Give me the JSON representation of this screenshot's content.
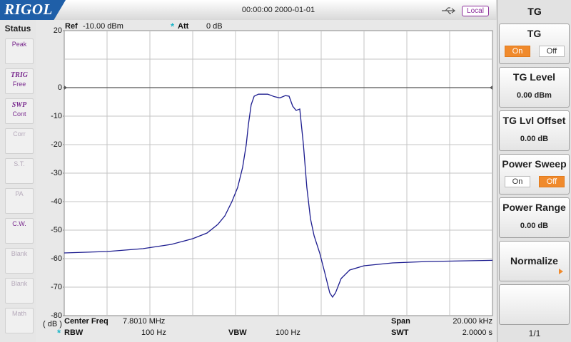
{
  "header": {
    "logo": "RIGOL",
    "datetime": "00:00:00 2000-01-01",
    "mode": "Local"
  },
  "sidebar": {
    "title": "Status",
    "items": [
      {
        "label": "Peak",
        "enabled": true
      },
      {
        "title": "TRIG",
        "label": "Free",
        "enabled": true
      },
      {
        "title": "SWP",
        "label": "Cont",
        "enabled": true
      },
      {
        "label": "Corr",
        "enabled": false
      },
      {
        "label": "S.T.",
        "enabled": false
      },
      {
        "label": "PA",
        "enabled": false
      },
      {
        "label": "C.W.",
        "enabled": true
      },
      {
        "label": "Blank",
        "enabled": false
      },
      {
        "label": "Blank",
        "enabled": false
      },
      {
        "label": "Math",
        "enabled": false
      }
    ]
  },
  "chart_data": {
    "type": "line",
    "ref_label": "Ref",
    "ref_value": "-10.00 dBm",
    "att_mark": "*",
    "att_label": "Att",
    "att_value": "0 dB",
    "y_unit": "( dB )",
    "x": [
      7.791,
      7.793,
      7.79467,
      7.796,
      7.797,
      7.79767,
      7.79817,
      7.7985,
      7.79883,
      7.7991,
      7.79933,
      7.7995,
      7.7996,
      7.79973,
      7.79987,
      7.80007,
      7.8005,
      7.80083,
      7.80107,
      7.80133,
      7.8015,
      7.80167,
      7.80183,
      7.802,
      7.80217,
      7.80233,
      7.8025,
      7.80267,
      7.80293,
      7.80317,
      7.8034,
      7.80353,
      7.80367,
      7.80393,
      7.80433,
      7.805,
      7.80633,
      7.808,
      7.811
    ],
    "series": [
      {
        "color": "#1c1c8f",
        "values": [
          -58,
          -57.5,
          -56.5,
          -55,
          -53,
          -51,
          -48,
          -45,
          -40,
          -35,
          -28,
          -20,
          -13,
          -6,
          -3,
          -2.3,
          -2.3,
          -3.2,
          -3.6,
          -2.8,
          -3,
          -6.5,
          -8,
          -7.5,
          -20,
          -35,
          -46,
          -52,
          -58,
          -65,
          -72,
          -73.5,
          -72,
          -67,
          -64,
          -62.5,
          -61.5,
          -61,
          -60.6
        ]
      }
    ],
    "xlim": [
      7.791,
      7.811
    ],
    "ylim": [
      -80,
      20
    ],
    "yticks": [
      20,
      0,
      -10,
      -20,
      -30,
      -40,
      -50,
      -60,
      -70,
      -80
    ],
    "grid": true,
    "reference_line": 0,
    "params": [
      {
        "label": "Center Freq",
        "value": "7.8010 MHz"
      },
      {
        "label": "Span",
        "value": "20.000 kHz"
      },
      {
        "mark": "*",
        "label": "RBW",
        "value": "100 Hz"
      },
      {
        "label": "VBW",
        "value": "100 Hz"
      },
      {
        "label": "SWT",
        "value": "2.0000 s"
      }
    ]
  },
  "menu": {
    "title": "TG",
    "page": "1/1",
    "buttons": [
      {
        "label": "TG",
        "options": [
          "On",
          "Off"
        ],
        "selected": 0
      },
      {
        "label": "TG Level",
        "value": "0.00 dBm"
      },
      {
        "label": "TG Lvl Offset",
        "value": "0.00 dB"
      },
      {
        "label": "Power Sweep",
        "options": [
          "On",
          "Off"
        ],
        "selected": 1
      },
      {
        "label": "Power Range",
        "value": "0.00 dB"
      },
      {
        "label": "Normalize",
        "submenu": true
      }
    ]
  }
}
